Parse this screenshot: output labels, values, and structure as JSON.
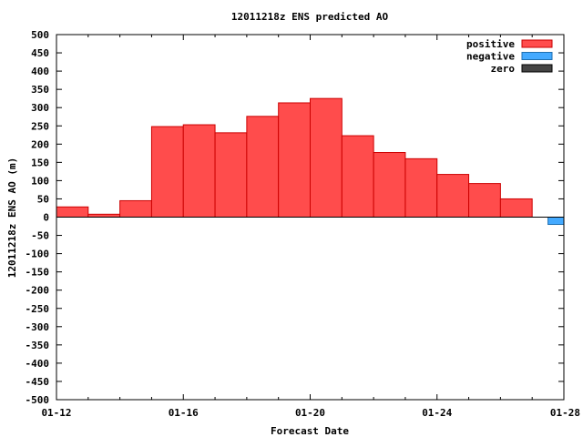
{
  "chart_data": {
    "type": "bar",
    "title": "12011218z ENS predicted AO",
    "xlabel": "Forecast Date",
    "ylabel": "12011218z ENS AO (m)",
    "ylim": [
      -500,
      500
    ],
    "yticks": [
      500,
      450,
      400,
      350,
      300,
      250,
      200,
      150,
      100,
      50,
      0,
      -50,
      -100,
      -150,
      -200,
      -250,
      -300,
      -350,
      -400,
      -450,
      -500
    ],
    "xlim": [
      0,
      16
    ],
    "xticks": [
      {
        "x": 0,
        "label": "01-12"
      },
      {
        "x": 4,
        "label": "01-16"
      },
      {
        "x": 8,
        "label": "01-20"
      },
      {
        "x": 12,
        "label": "01-24"
      },
      {
        "x": 16,
        "label": "01-28"
      }
    ],
    "bar_width": 1,
    "bars": [
      {
        "x": 0,
        "value": 28
      },
      {
        "x": 1,
        "value": 8
      },
      {
        "x": 2,
        "value": 45
      },
      {
        "x": 3,
        "value": 248
      },
      {
        "x": 4,
        "value": 253
      },
      {
        "x": 5,
        "value": 231
      },
      {
        "x": 6,
        "value": 276
      },
      {
        "x": 7,
        "value": 313
      },
      {
        "x": 8,
        "value": 325
      },
      {
        "x": 9,
        "value": 223
      },
      {
        "x": 10,
        "value": 177
      },
      {
        "x": 11,
        "value": 160
      },
      {
        "x": 12,
        "value": 117
      },
      {
        "x": 13,
        "value": 92
      },
      {
        "x": 14,
        "value": 50
      },
      {
        "x": 15,
        "value": 0
      },
      {
        "x": 16,
        "value": -20
      }
    ],
    "legend": {
      "placement": "top-right",
      "entries": [
        {
          "label": "positive",
          "color": "#ff4c4c",
          "stroke": "#c80000"
        },
        {
          "label": "negative",
          "color": "#44aaff",
          "stroke": "#1f6fb0"
        },
        {
          "label": "zero",
          "color": "#444444",
          "stroke": "#000000"
        }
      ]
    },
    "colors": {
      "positive": "#ff4c4c",
      "positive_edge": "#cc0000",
      "negative": "#44aaff",
      "negative_edge": "#1f6fb0"
    }
  }
}
